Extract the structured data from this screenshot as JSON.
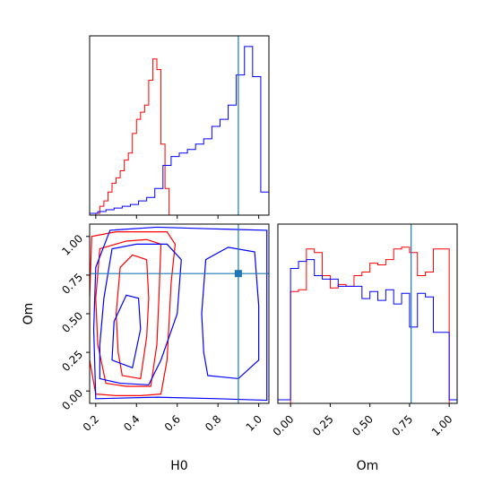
{
  "chart_data": {
    "type": "corner",
    "params": [
      "H0",
      "Om"
    ],
    "truths": {
      "H0": 0.9,
      "Om": 0.76
    },
    "colors": {
      "series_a": "#ff0000",
      "series_b": "#0000ff",
      "truth": "#1f77b4"
    },
    "axes": [
      {
        "panel": "H0-marginal",
        "type": "histogram",
        "xlim": [
          0.17,
          1.05
        ],
        "x_ticks": [
          0.2,
          0.4,
          0.6,
          0.8,
          1.0
        ],
        "x_tick_labels_shown": false,
        "ylabel": "",
        "series": [
          {
            "color": "series_a",
            "bin_edges": [
              0.2,
              0.22,
              0.24,
              0.26,
              0.28,
              0.3,
              0.32,
              0.34,
              0.36,
              0.38,
              0.4,
              0.42,
              0.44,
              0.46,
              0.48,
              0.5,
              0.52,
              0.54,
              0.56
            ],
            "values": [
              0.01,
              0.05,
              0.08,
              0.13,
              0.18,
              0.21,
              0.25,
              0.31,
              0.35,
              0.46,
              0.54,
              0.58,
              0.62,
              0.76,
              0.88,
              0.82,
              0.4,
              0.15
            ]
          },
          {
            "color": "series_b",
            "bin_edges": [
              0.17,
              0.21,
              0.25,
              0.29,
              0.33,
              0.37,
              0.41,
              0.45,
              0.49,
              0.53,
              0.57,
              0.61,
              0.65,
              0.69,
              0.73,
              0.77,
              0.81,
              0.85,
              0.89,
              0.93,
              0.97,
              1.01,
              1.05
            ],
            "values": [
              0.01,
              0.02,
              0.03,
              0.04,
              0.05,
              0.06,
              0.08,
              0.1,
              0.15,
              0.28,
              0.33,
              0.35,
              0.37,
              0.4,
              0.43,
              0.5,
              0.54,
              0.62,
              0.79,
              0.95,
              0.78,
              0.13
            ]
          }
        ],
        "truth_x": 0.9
      },
      {
        "panel": "H0-Om-joint",
        "type": "contour",
        "xlabel": "H0",
        "ylabel": "Om",
        "xlim": [
          0.17,
          1.05
        ],
        "ylim": [
          -0.08,
          1.08
        ],
        "x_ticks": [
          0.2,
          0.4,
          0.6,
          0.8,
          1.0
        ],
        "x_tick_labels": [
          "0.2",
          "0.4",
          "0.6",
          "0.8",
          "1.0"
        ],
        "y_ticks": [
          0.0,
          0.25,
          0.5,
          0.75,
          1.0
        ],
        "y_tick_labels": [
          "0.00",
          "0.25",
          "0.50",
          "0.75",
          "1.00"
        ],
        "truth_point": [
          0.9,
          0.76
        ],
        "contours": [
          {
            "color": "series_a",
            "points": [
              [
                0.2,
                -0.02
              ],
              [
                0.3,
                -0.03
              ],
              [
                0.42,
                -0.03
              ],
              [
                0.52,
                -0.02
              ],
              [
                0.55,
                0.2
              ],
              [
                0.56,
                0.45
              ],
              [
                0.57,
                0.7
              ],
              [
                0.59,
                0.95
              ],
              [
                0.55,
                1.03
              ],
              [
                0.45,
                1.03
              ],
              [
                0.3,
                1.03
              ],
              [
                0.18,
                1.0
              ],
              [
                0.17,
                0.6
              ],
              [
                0.17,
                0.2
              ],
              [
                0.2,
                -0.02
              ]
            ]
          },
          {
            "color": "series_a",
            "points": [
              [
                0.25,
                0.05
              ],
              [
                0.35,
                0.03
              ],
              [
                0.47,
                0.03
              ],
              [
                0.5,
                0.3
              ],
              [
                0.51,
                0.6
              ],
              [
                0.52,
                0.95
              ],
              [
                0.45,
                0.98
              ],
              [
                0.35,
                0.97
              ],
              [
                0.22,
                0.92
              ],
              [
                0.2,
                0.6
              ],
              [
                0.21,
                0.3
              ],
              [
                0.25,
                0.05
              ]
            ]
          },
          {
            "color": "series_a",
            "points": [
              [
                0.33,
                0.1
              ],
              [
                0.42,
                0.08
              ],
              [
                0.45,
                0.35
              ],
              [
                0.46,
                0.6
              ],
              [
                0.45,
                0.85
              ],
              [
                0.38,
                0.88
              ],
              [
                0.32,
                0.8
              ],
              [
                0.3,
                0.5
              ],
              [
                0.31,
                0.25
              ],
              [
                0.33,
                0.1
              ]
            ]
          },
          {
            "color": "series_b",
            "points": [
              [
                0.2,
                -0.05
              ],
              [
                0.5,
                -0.04
              ],
              [
                0.8,
                -0.05
              ],
              [
                1.04,
                -0.06
              ],
              [
                1.04,
                1.04
              ],
              [
                0.75,
                1.05
              ],
              [
                0.5,
                1.06
              ],
              [
                0.27,
                1.04
              ],
              [
                0.2,
                0.8
              ],
              [
                0.19,
                0.4
              ],
              [
                0.2,
                -0.05
              ]
            ]
          },
          {
            "color": "series_b",
            "points": [
              [
                0.22,
                0.08
              ],
              [
                0.32,
                0.05
              ],
              [
                0.46,
                0.04
              ],
              [
                0.52,
                0.2
              ],
              [
                0.6,
                0.5
              ],
              [
                0.62,
                0.85
              ],
              [
                0.55,
                0.95
              ],
              [
                0.4,
                0.95
              ],
              [
                0.28,
                0.92
              ],
              [
                0.24,
                0.6
              ],
              [
                0.22,
                0.3
              ],
              [
                0.22,
                0.08
              ]
            ]
          },
          {
            "color": "series_b",
            "points": [
              [
                0.75,
                0.1
              ],
              [
                0.9,
                0.08
              ],
              [
                1.0,
                0.2
              ],
              [
                1.0,
                0.55
              ],
              [
                0.98,
                0.9
              ],
              [
                0.85,
                0.93
              ],
              [
                0.74,
                0.85
              ],
              [
                0.72,
                0.5
              ],
              [
                0.73,
                0.25
              ],
              [
                0.75,
                0.1
              ]
            ]
          },
          {
            "color": "series_b",
            "points": [
              [
                0.28,
                0.2
              ],
              [
                0.38,
                0.15
              ],
              [
                0.42,
                0.4
              ],
              [
                0.41,
                0.6
              ],
              [
                0.35,
                0.62
              ],
              [
                0.29,
                0.45
              ],
              [
                0.28,
                0.2
              ]
            ]
          }
        ]
      },
      {
        "panel": "Om-marginal",
        "type": "histogram",
        "xlabel": "Om",
        "xlim": [
          -0.08,
          1.05
        ],
        "x_ticks": [
          0.0,
          0.25,
          0.5,
          0.75,
          1.0
        ],
        "x_tick_labels": [
          "0.00",
          "0.25",
          "0.50",
          "0.75",
          "1.00"
        ],
        "series": [
          {
            "color": "series_a",
            "bin_edges": [
              0.0,
              0.05,
              0.1,
              0.15,
              0.2,
              0.25,
              0.3,
              0.35,
              0.4,
              0.45,
              0.5,
              0.55,
              0.6,
              0.65,
              0.7,
              0.75,
              0.8,
              0.85,
              0.9,
              0.95,
              1.0
            ],
            "values": [
              0.63,
              0.64,
              0.87,
              0.85,
              0.72,
              0.65,
              0.67,
              0.66,
              0.72,
              0.74,
              0.79,
              0.78,
              0.81,
              0.87,
              0.88,
              0.85,
              0.72,
              0.74,
              0.87,
              0.87
            ]
          },
          {
            "color": "series_b",
            "bin_edges": [
              -0.08,
              0.0,
              0.05,
              0.1,
              0.15,
              0.2,
              0.25,
              0.3,
              0.35,
              0.4,
              0.45,
              0.5,
              0.55,
              0.6,
              0.65,
              0.7,
              0.75,
              0.8,
              0.85,
              0.9,
              0.95,
              1.0,
              1.05
            ],
            "values": [
              0.02,
              0.76,
              0.8,
              0.81,
              0.72,
              0.7,
              0.7,
              0.66,
              0.66,
              0.66,
              0.59,
              0.63,
              0.58,
              0.64,
              0.56,
              0.62,
              0.43,
              0.62,
              0.6,
              0.4,
              0.4,
              0.02
            ]
          }
        ],
        "truth_x": 0.76
      }
    ]
  }
}
